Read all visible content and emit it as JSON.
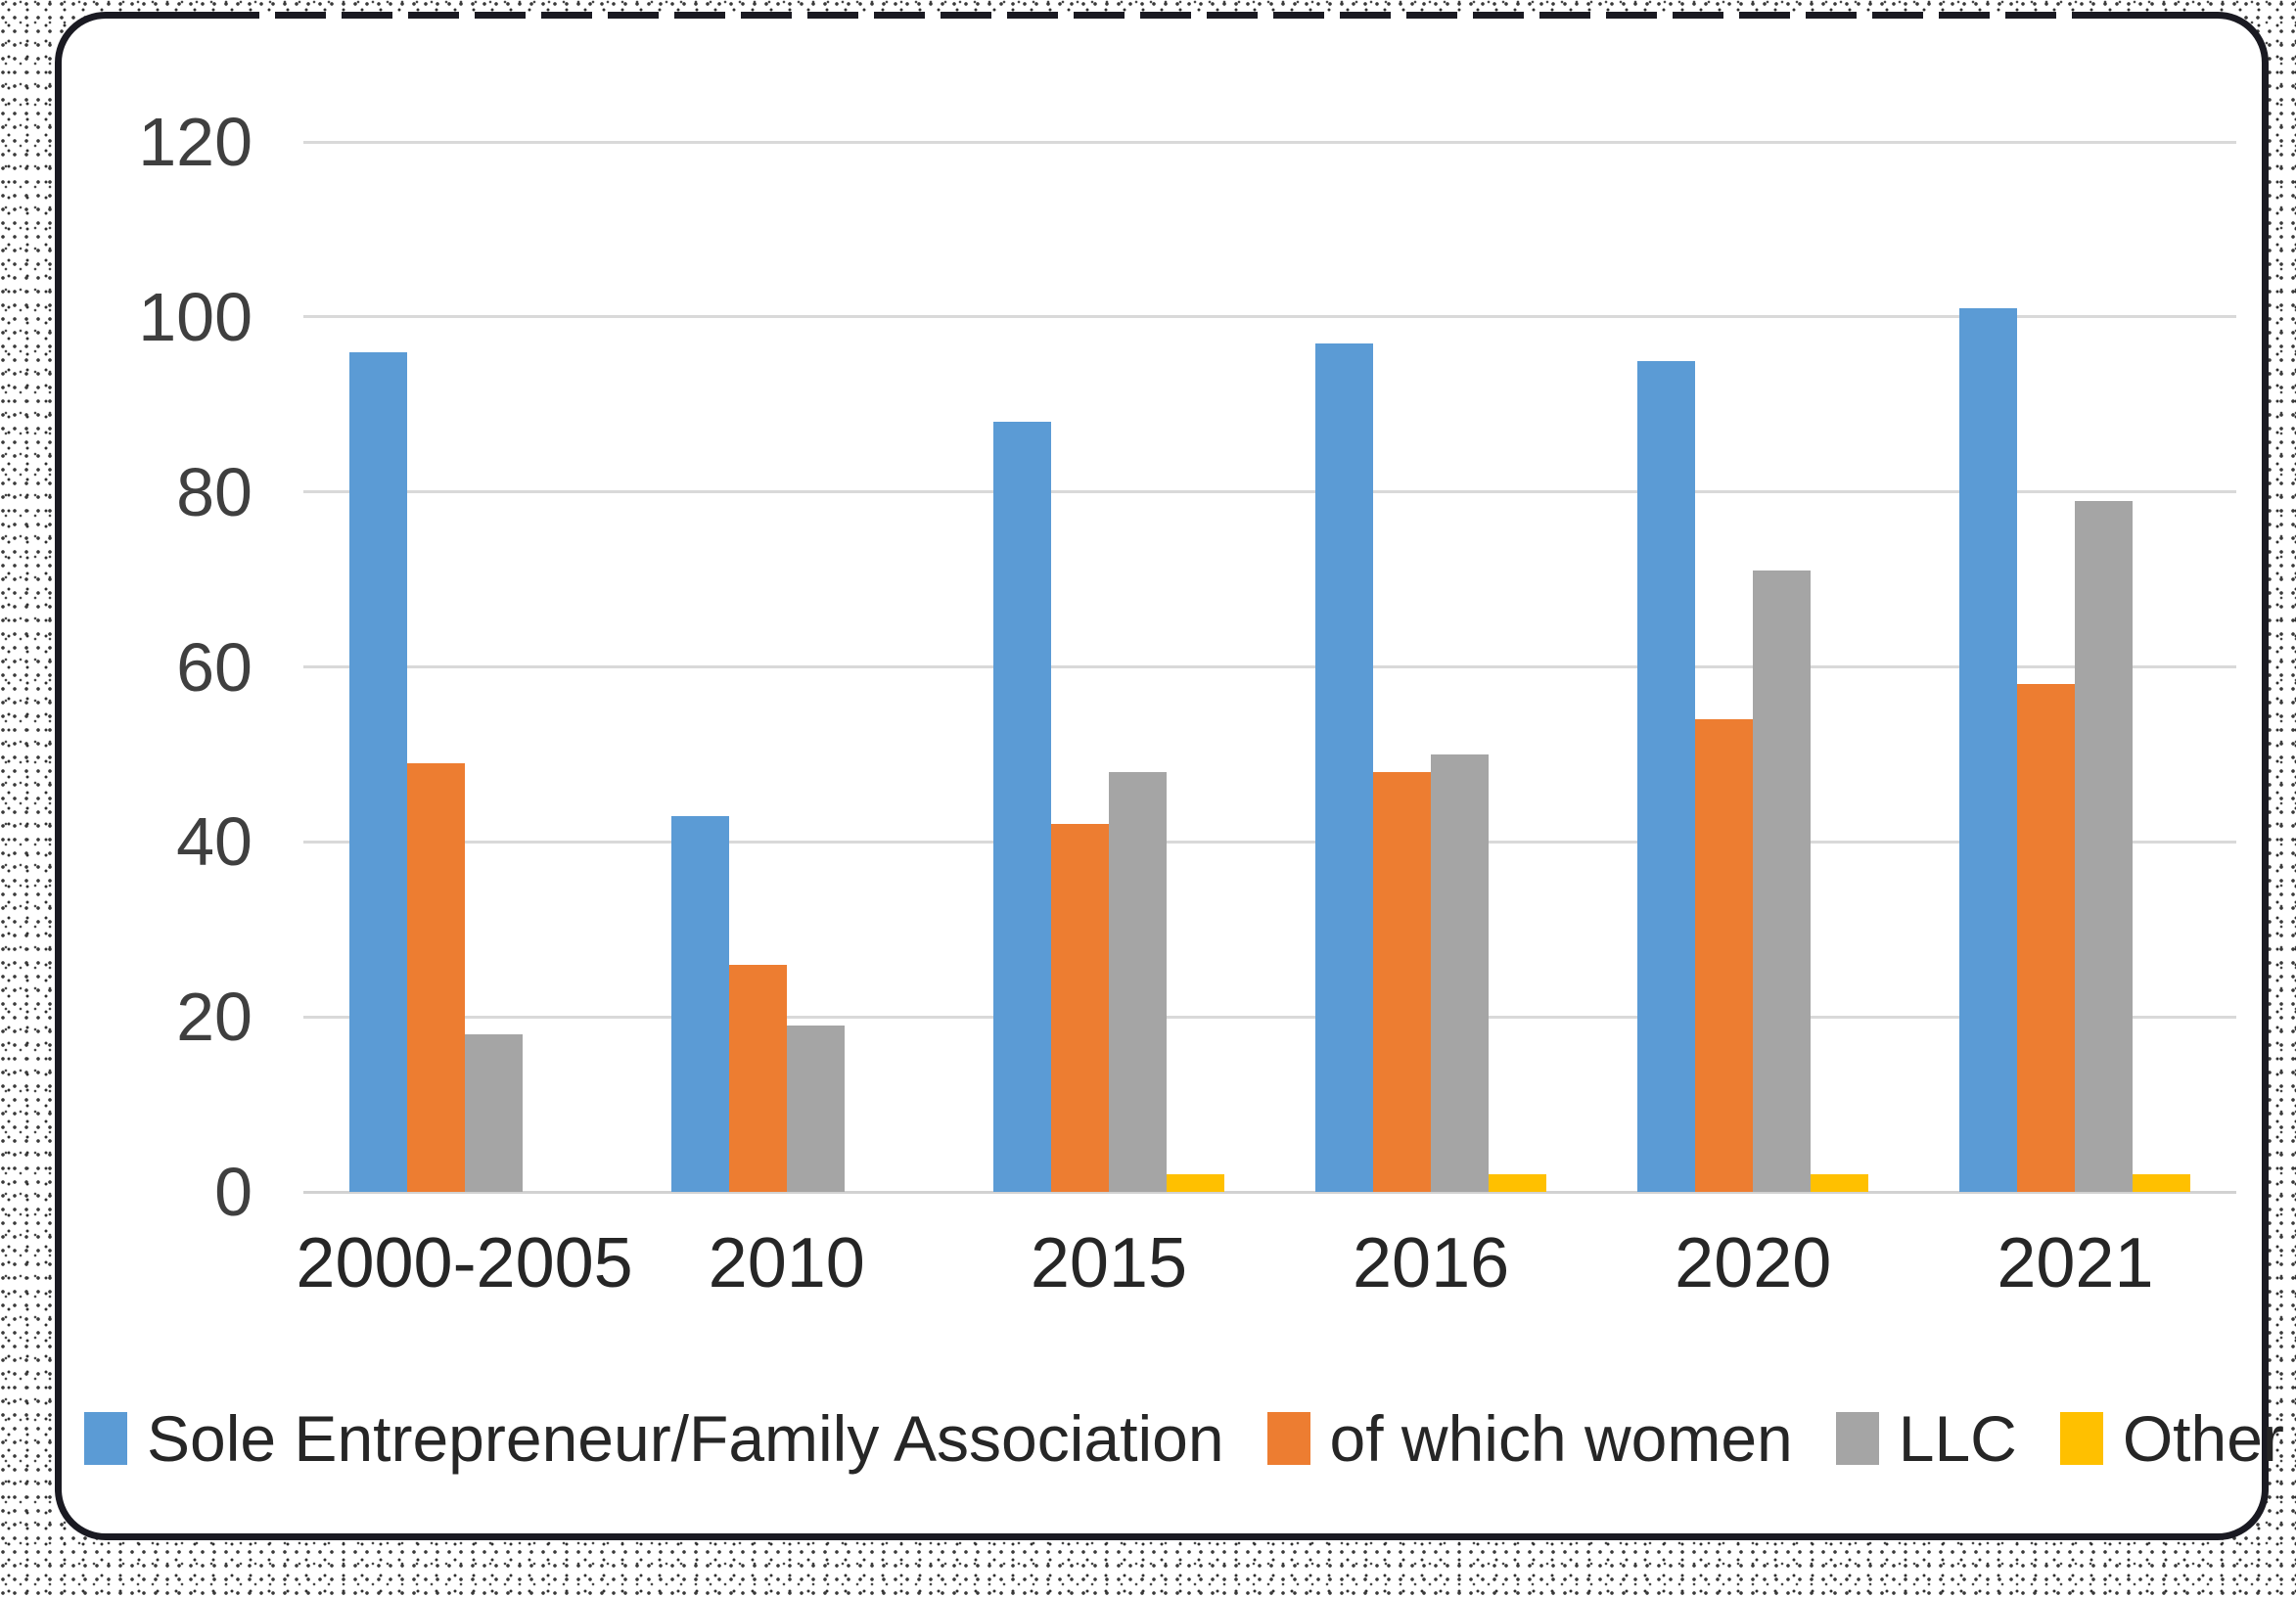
{
  "chart_data": {
    "type": "bar",
    "title": "",
    "categories": [
      "2000-2005",
      "2010",
      "2015",
      "2016",
      "2020",
      "2021"
    ],
    "series": [
      {
        "name": "Sole Entrepreneur/Family Association",
        "color": "#5B9BD5",
        "values": [
          96,
          43,
          88,
          97,
          95,
          101
        ]
      },
      {
        "name": "of which women",
        "color": "#ED7D31",
        "values": [
          49,
          26,
          42,
          48,
          54,
          58
        ]
      },
      {
        "name": "LLC",
        "color": "#A5A5A5",
        "values": [
          18,
          19,
          48,
          50,
          71,
          79
        ]
      },
      {
        "name": "Other",
        "color": "#FFC000",
        "values": [
          0,
          0,
          2,
          2,
          2,
          2
        ]
      }
    ],
    "y_axis": {
      "min": 0,
      "max": 120,
      "step": 20,
      "tick_labels": [
        "0",
        "20",
        "40",
        "60",
        "80",
        "100",
        "120"
      ]
    },
    "x_axis_labels": [
      "2000-2005",
      "2010",
      "2015",
      "2016",
      "2020",
      "2021"
    ],
    "legend_position": "bottom",
    "grid": "horizontal"
  },
  "style_colors": {
    "gridline": "#D9D9D9",
    "axis_text": "#3F3F3F",
    "label_text": "#262626",
    "card_border": "#1A1A22"
  }
}
